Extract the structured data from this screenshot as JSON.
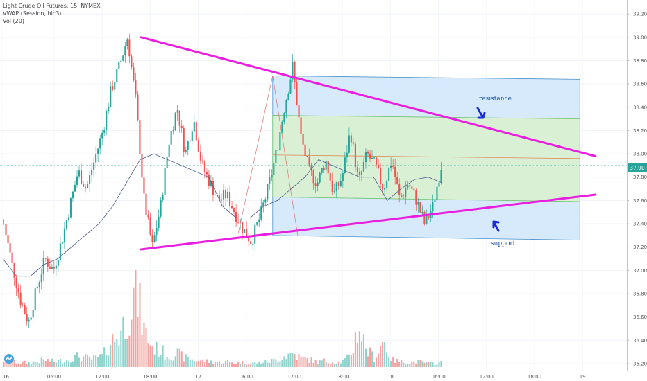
{
  "legend": {
    "symbol_line": "Light Crude Oil Futures, 15, NYMEX",
    "vwap_line": "VWAP (Session, hlc3)",
    "vol_line": "Vol (20)"
  },
  "colors": {
    "up": "#26a69a",
    "down": "#ef5350",
    "vol_up": "#8fd3cc",
    "vol_down": "#f4a3a1",
    "triangle": "#e91ee0",
    "channel_blue": "#cfe6fb",
    "channel_green": "#d9f0d3",
    "arrow": "#1a2ed8",
    "price_tag": "#26a69a"
  },
  "annotations": {
    "resistance": "resistance",
    "support": "support"
  },
  "chart_data": {
    "type": "candlestick",
    "title": "Light Crude Oil Futures, 15, NYMEX",
    "indicators": [
      "VWAP (Session, hlc3)",
      "Vol (20)"
    ],
    "y_ticks": [
      "39.20",
      "39.00",
      "38.80",
      "38.60",
      "38.40",
      "38.20",
      "38.00",
      "37.80",
      "37.60",
      "37.40",
      "37.20",
      "37.00",
      "36.80",
      "36.60",
      "36.40",
      "36.20"
    ],
    "ylim": [
      36.14,
      39.32
    ],
    "x_ticks": [
      "16",
      "06:00",
      "12:00",
      "18:00",
      "17",
      "06:00",
      "12:00",
      "18:00",
      "18",
      "06:00",
      "12:00",
      "18:00",
      "19"
    ],
    "last_price": "37.90",
    "price_path": [
      37.4,
      37.05,
      36.75,
      36.55,
      36.85,
      37.1,
      37.0,
      37.25,
      37.55,
      37.85,
      37.7,
      37.95,
      38.2,
      38.55,
      38.75,
      39.0,
      38.45,
      37.6,
      37.2,
      37.55,
      38.1,
      38.4,
      38.0,
      38.3,
      37.9,
      37.75,
      37.6,
      37.65,
      37.5,
      37.35,
      37.25,
      37.45,
      37.7,
      38.0,
      38.4,
      38.75,
      38.15,
      37.85,
      37.75,
      37.95,
      37.65,
      37.8,
      38.2,
      37.75,
      38.0,
      37.9,
      37.7,
      37.95,
      37.6,
      37.75,
      37.6,
      37.4,
      37.55,
      37.9
    ],
    "vwap_path": [
      37.1,
      36.95,
      36.95,
      37.05,
      37.1,
      37.2,
      37.3,
      37.4,
      37.55,
      37.75,
      37.95,
      38.0,
      37.95,
      37.9,
      37.85,
      37.8,
      37.55,
      37.45,
      37.45,
      37.55,
      37.6,
      37.7,
      37.8,
      37.95,
      37.9,
      37.85,
      37.8,
      37.8,
      37.6,
      37.7,
      37.78,
      37.8,
      37.75
    ],
    "volume_path": [
      0.08,
      0.06,
      0.05,
      0.05,
      0.06,
      0.08,
      0.06,
      0.07,
      0.09,
      0.12,
      0.1,
      0.09,
      0.12,
      0.28,
      0.35,
      0.55,
      0.85,
      0.4,
      0.22,
      0.18,
      0.12,
      0.15,
      0.1,
      0.08,
      0.07,
      0.06,
      0.05,
      0.06,
      0.05,
      0.05,
      0.04,
      0.05,
      0.06,
      0.08,
      0.12,
      0.15,
      0.1,
      0.08,
      0.06,
      0.07,
      0.05,
      0.06,
      0.12,
      0.45,
      0.18,
      0.1,
      0.3,
      0.08,
      0.06,
      0.05,
      0.06,
      0.05,
      0.04,
      0.05
    ],
    "lines": {
      "triangle_upper": [
        [
          0.225,
          39.0
        ],
        [
          0.95,
          37.98
        ]
      ],
      "triangle_lower": [
        [
          0.225,
          37.18
        ],
        [
          0.95,
          37.65
        ]
      ],
      "regression_start": [
        0.435,
        38.67
      ]
    },
    "channel": {
      "start": 0.435,
      "end": 0.925,
      "outer": [
        38.67,
        38.64,
        37.3,
        37.26
      ],
      "inner": [
        38.33,
        38.3,
        37.63,
        37.59
      ],
      "mid": [
        37.99,
        37.96
      ]
    }
  }
}
